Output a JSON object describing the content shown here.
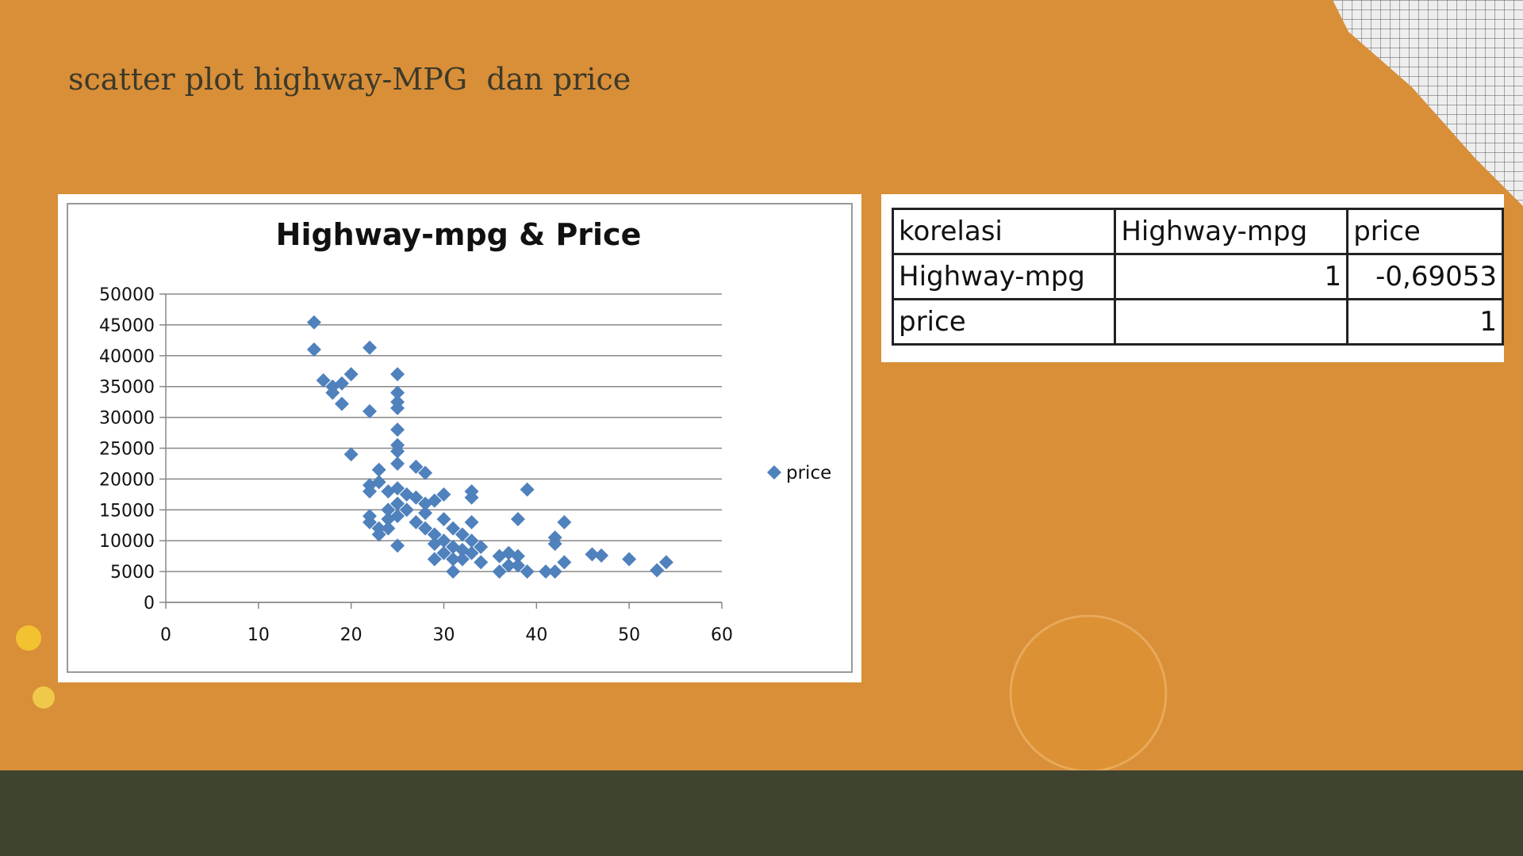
{
  "slide_title": "scatter plot highway-MPG  dan price",
  "chart_data": {
    "type": "scatter",
    "title": "Highway-mpg & Price",
    "x": [
      16,
      16,
      22,
      17,
      18,
      18,
      19,
      20,
      19,
      22,
      25,
      25,
      25,
      25,
      25,
      25,
      25,
      20,
      25,
      27,
      28,
      23,
      22,
      22,
      23,
      24,
      25,
      26,
      27,
      28,
      29,
      30,
      33,
      33,
      39,
      22,
      22,
      23,
      23,
      24,
      24,
      24,
      25,
      25,
      25,
      26,
      27,
      28,
      28,
      29,
      29,
      29,
      30,
      30,
      30,
      31,
      31,
      31,
      31,
      32,
      32,
      32,
      33,
      33,
      33,
      34,
      34,
      36,
      36,
      37,
      37,
      38,
      38,
      38,
      39,
      41,
      42,
      42,
      42,
      43,
      43,
      46,
      47,
      50,
      53,
      54
    ],
    "series": [
      {
        "name": "price",
        "color": "#4f81bd",
        "values": [
          45400,
          41000,
          41300,
          36000,
          35000,
          34000,
          35500,
          37000,
          32200,
          31000,
          37000,
          34000,
          32500,
          31500,
          28000,
          25500,
          24500,
          24000,
          22500,
          22000,
          21000,
          21500,
          19000,
          18000,
          19500,
          18000,
          18500,
          17500,
          17000,
          16000,
          16500,
          17500,
          18000,
          17000,
          18300,
          14000,
          13000,
          12000,
          11000,
          15000,
          13500,
          12000,
          16000,
          14000,
          9200,
          15000,
          13000,
          12000,
          14500,
          11000,
          9500,
          7000,
          13500,
          10000,
          8000,
          12000,
          9000,
          7000,
          5000,
          11000,
          8500,
          7000,
          13000,
          10000,
          8000,
          9000,
          6500,
          5000,
          7500,
          8000,
          6000,
          7500,
          6000,
          13500,
          5000,
          5000,
          5000,
          10500,
          9500,
          6500,
          13000,
          7800,
          7600,
          7000,
          5200,
          6500
        ]
      }
    ],
    "xlim": [
      0,
      60
    ],
    "xticks": [
      0,
      10,
      20,
      30,
      40,
      50,
      60
    ],
    "ylim": [
      0,
      50000
    ],
    "yticks": [
      0,
      5000,
      10000,
      15000,
      20000,
      25000,
      30000,
      35000,
      40000,
      45000,
      50000
    ],
    "grid": true,
    "legend": "right"
  },
  "table": {
    "rows": [
      [
        "korelasi",
        "Highway-mpg",
        "price"
      ],
      [
        "Highway-mpg",
        "1",
        "-0,69053"
      ],
      [
        "price",
        null,
        "1"
      ]
    ]
  }
}
